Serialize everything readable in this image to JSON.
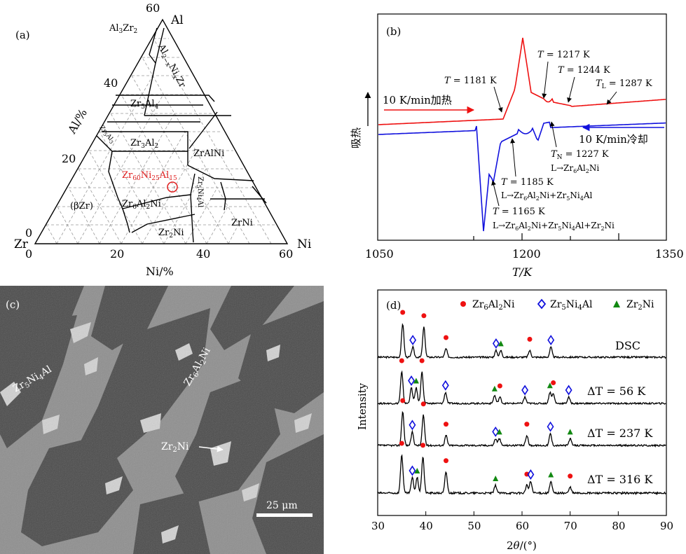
{
  "panel_a": {
    "label": "(a)",
    "vertex_al": "Al",
    "vertex_zr": "Zr",
    "vertex_ni": "Ni",
    "al_ticks": [
      "60",
      "40",
      "20",
      "0"
    ],
    "ni_ticks": [
      "0",
      "20",
      "40",
      "60"
    ],
    "al_axis": "Al/%",
    "ni_axis": "Ni/%",
    "phases": {
      "al3zr2": "Al3Zr2",
      "al2xnixzr": "Al2−xNixZr",
      "zr5al4": "Zr5Al4",
      "zr5al3": "Zr5Al3",
      "zr3al2": "Zr3Al2",
      "zralni": "ZrAlNi",
      "bzr": "(βZr)",
      "zr6al2ni": "Zr6Al2Ni",
      "zr5ni4al": "Zr5Ni4Al",
      "zr2ni": "Zr2Ni",
      "zrni": "ZrNi",
      "alloy": "Zr60Ni25Al15"
    },
    "alloy_color": "#e02020"
  },
  "panel_b": {
    "label": "(b)",
    "ylabel": "吸热",
    "xlabel": "T/K",
    "heating": "10 K/min加热",
    "cooling": "10 K/min冷却",
    "heating_color": "#ee1111",
    "cooling_color": "#1111dd",
    "ann": {
      "t1181": "T = 1181 K",
      "t1217": "T = 1217 K",
      "t1244": "T = 1244 K",
      "tl": "TL = 1287 K",
      "tn": "TN = 1227 K",
      "tn_r": "L→Zr6Al2Ni",
      "t1185": "T = 1185 K",
      "t1185_r": "L→Zr6Al2Ni+Zr5Ni4Al",
      "t1165": "T = 1165 K",
      "t1165_r": "L→Zr6Al2Ni+Zr5Ni4Al+Zr2Ni"
    }
  },
  "panel_c": {
    "label": "(c)",
    "phase1": "Zr5Ni4Al",
    "phase2": "Zr6Al2Ni",
    "phase3": "Zr2Ni",
    "scale": "25 μm"
  },
  "chart_data": {
    "type": "line",
    "label": "(d)",
    "xlabel": "2θ/(°)",
    "ylabel": "Intensity",
    "xlim": [
      30,
      90
    ],
    "x_ticks": [
      30,
      40,
      50,
      60,
      70,
      80,
      90
    ],
    "legend": [
      "Zr6Al2Ni",
      "Zr5Ni4Al",
      "Zr2Ni"
    ],
    "legend_colors": [
      "#ee1111",
      "#1111dd",
      "#118811"
    ],
    "series": [
      {
        "name": "DSC",
        "peaks": [
          [
            35.2,
            1.0
          ],
          [
            37.3,
            0.3
          ],
          [
            39.6,
            0.9
          ],
          [
            44.2,
            0.25
          ],
          [
            54.6,
            0.2
          ],
          [
            55.6,
            0.2
          ],
          [
            61.6,
            0.2
          ],
          [
            66,
            0.3
          ]
        ]
      },
      {
        "name": "ΔT = 56 K",
        "peaks": [
          [
            35.0,
            1.0
          ],
          [
            37.0,
            0.5
          ],
          [
            38.0,
            0.5
          ],
          [
            39.2,
            1.0
          ],
          [
            44.1,
            0.35
          ],
          [
            54.3,
            0.25
          ],
          [
            55.4,
            0.2
          ],
          [
            60.6,
            0.2
          ],
          [
            65.8,
            0.35
          ],
          [
            66.5,
            0.3
          ],
          [
            69.7,
            0.2
          ]
        ]
      },
      {
        "name": "ΔT = 237 K",
        "peaks": [
          [
            35.2,
            1.0
          ],
          [
            37.2,
            0.4
          ],
          [
            39.5,
            0.9
          ],
          [
            44.2,
            0.3
          ],
          [
            54.5,
            0.2
          ],
          [
            55.3,
            0.2
          ],
          [
            61.0,
            0.3
          ],
          [
            65.9,
            0.35
          ],
          [
            70,
            0.2
          ]
        ]
      },
      {
        "name": "ΔT = 316 K",
        "peaks": [
          [
            35.0,
            1.0
          ],
          [
            37.2,
            0.4
          ],
          [
            38.2,
            0.4
          ],
          [
            39.4,
            0.95
          ],
          [
            44.2,
            0.55
          ],
          [
            54.5,
            0.2
          ],
          [
            61.0,
            0.2
          ],
          [
            61.8,
            0.3
          ],
          [
            66,
            0.3
          ],
          [
            70,
            0.15
          ]
        ]
      }
    ]
  }
}
